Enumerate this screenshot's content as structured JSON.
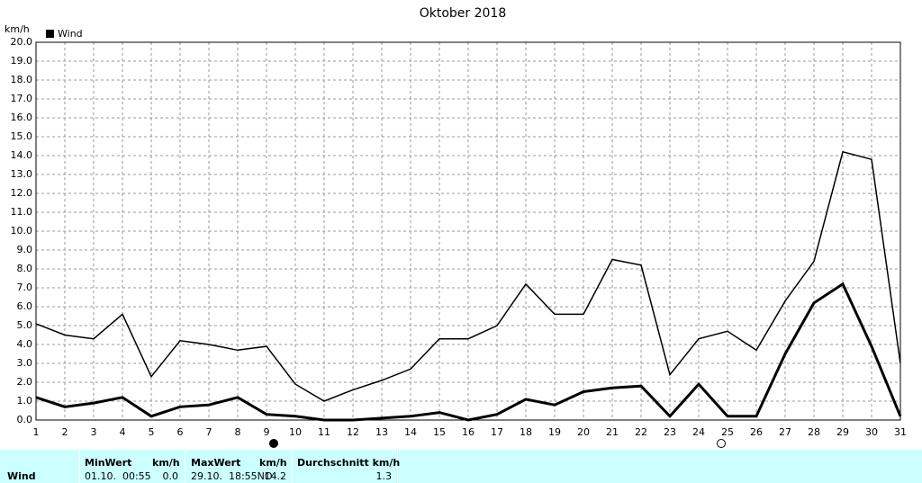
{
  "chart_data": {
    "type": "line",
    "title": "Oktober 2018",
    "y_label": "km/h",
    "x": [
      1,
      2,
      3,
      4,
      5,
      6,
      7,
      8,
      9,
      10,
      11,
      12,
      13,
      14,
      15,
      16,
      17,
      18,
      19,
      20,
      21,
      22,
      23,
      24,
      25,
      26,
      27,
      28,
      29,
      30,
      31
    ],
    "series": [
      {
        "name": "Wind",
        "color": "#000000",
        "values": [
          1.2,
          0.7,
          0.9,
          1.2,
          0.2,
          0.7,
          0.8,
          1.2,
          0.3,
          0.2,
          0.0,
          0.0,
          0.1,
          0.2,
          0.4,
          0.0,
          0.3,
          1.1,
          0.8,
          1.5,
          1.7,
          1.8,
          0.2,
          1.9,
          0.2,
          0.2,
          3.5,
          6.2,
          7.2,
          3.9,
          0.2
        ]
      },
      {
        "color": "#000000",
        "values": [
          5.1,
          4.5,
          4.3,
          5.6,
          2.3,
          4.2,
          4.0,
          3.7,
          3.9,
          1.9,
          1.0,
          1.6,
          2.1,
          2.7,
          4.3,
          4.3,
          5.0,
          7.2,
          5.6,
          5.6,
          8.5,
          8.2,
          2.4,
          4.3,
          4.7,
          3.7,
          6.3,
          8.4,
          14.2,
          13.8,
          3.0
        ]
      }
    ],
    "xlim": [
      1,
      31
    ],
    "xticks": [
      1,
      2,
      3,
      4,
      5,
      6,
      7,
      8,
      9,
      10,
      11,
      12,
      13,
      14,
      15,
      16,
      17,
      18,
      19,
      20,
      21,
      22,
      23,
      24,
      25,
      26,
      27,
      28,
      29,
      30,
      31
    ],
    "ylim": [
      0,
      20
    ],
    "yticks": [
      {
        "value": 0,
        "label": "0.0"
      },
      {
        "value": 1,
        "label": "1.0"
      },
      {
        "value": 2,
        "label": "2.0"
      },
      {
        "value": 3,
        "label": "3.0"
      },
      {
        "value": 4,
        "label": "4.0"
      },
      {
        "value": 5,
        "label": "5.0"
      },
      {
        "value": 6,
        "label": "6.0"
      },
      {
        "value": 7,
        "label": "7.0"
      },
      {
        "value": 8,
        "label": "8.0"
      },
      {
        "value": 9,
        "label": "9.0"
      },
      {
        "value": 10,
        "label": "10.0"
      },
      {
        "value": 11,
        "label": "11.0"
      },
      {
        "value": 12,
        "label": "12.0"
      },
      {
        "value": 13,
        "label": "13.0"
      },
      {
        "value": 14,
        "label": "14.0"
      },
      {
        "value": 15,
        "label": "15.0"
      },
      {
        "value": 16,
        "label": "16.0"
      },
      {
        "value": 17,
        "label": "17.0"
      },
      {
        "value": 18,
        "label": "18.0"
      },
      {
        "value": 19,
        "label": "19.0"
      },
      {
        "value": 20,
        "label": "20.0"
      }
    ],
    "grid": true
  },
  "table": {
    "row_label": "Wind",
    "min": {
      "header": "MinWert",
      "unit": "km/h",
      "time": "01.10.  00:55",
      "value": "0.0"
    },
    "max": {
      "header": "MaxWert",
      "unit": "km/h",
      "time": "29.10.  18:55NO",
      "value": "14.2"
    },
    "avg": {
      "header": "Durchschnitt km/h",
      "value": "1.3"
    }
  }
}
